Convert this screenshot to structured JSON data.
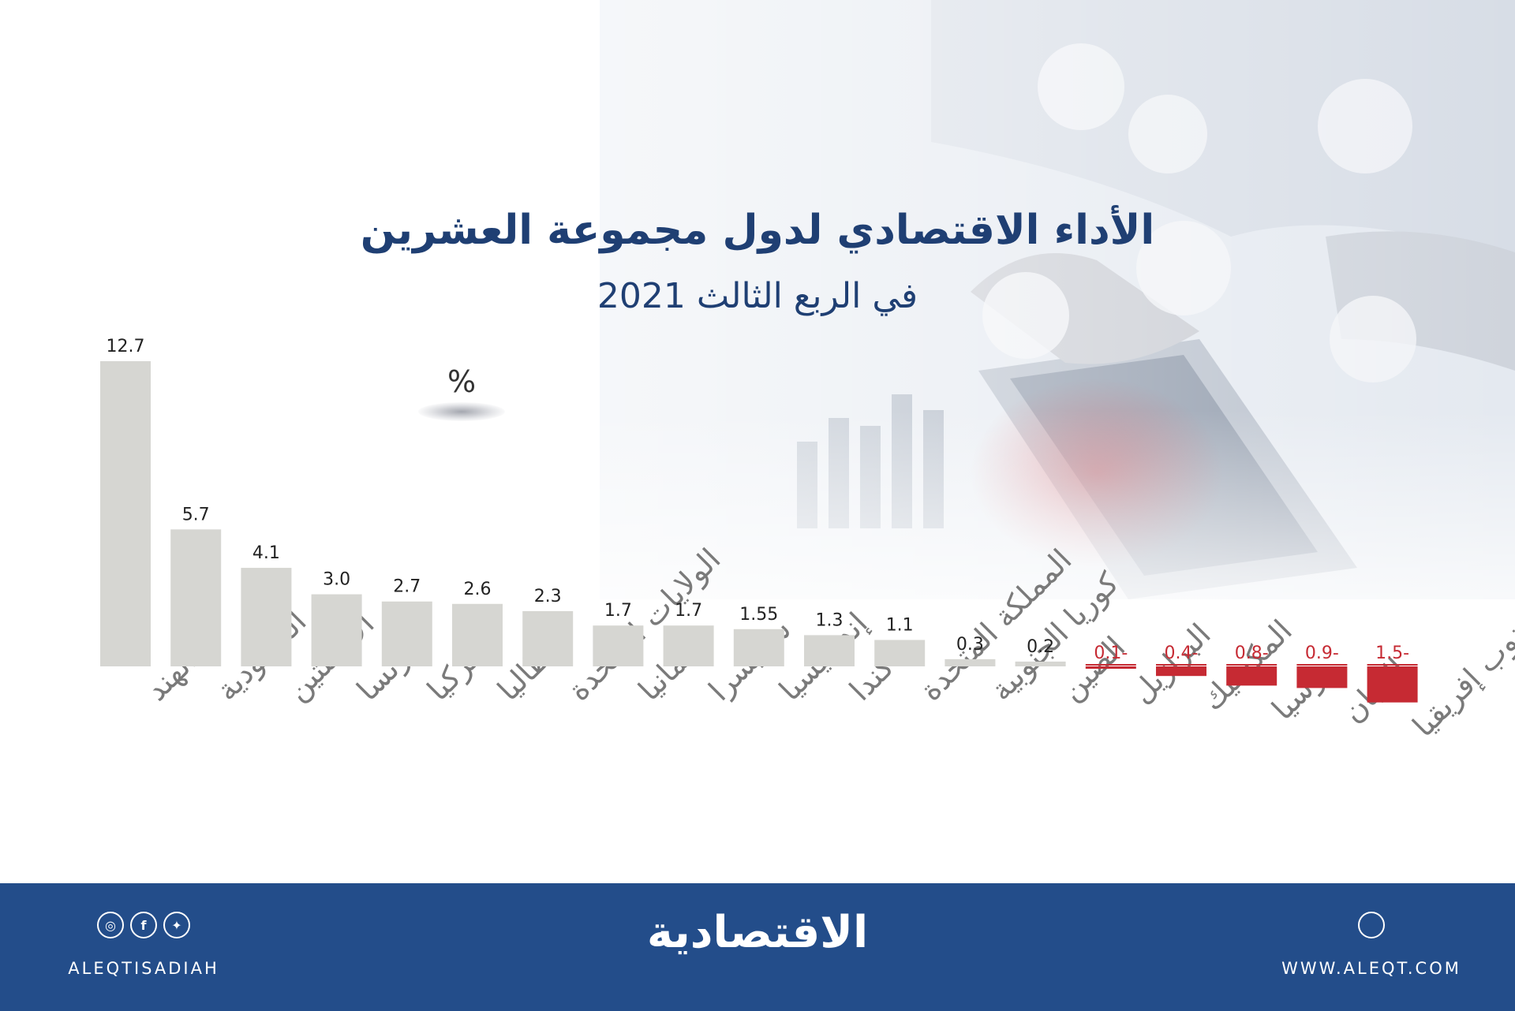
{
  "title": "الأداء الاقتصادي لدول مجموعة العشرين",
  "subtitle": "في الربع الثالث 2021",
  "unit": "%",
  "chart_data": {
    "type": "bar",
    "title": "الأداء الاقتصادي لدول مجموعة العشرين",
    "subtitle": "في الربع الثالث 2021",
    "ylabel": "%",
    "categories": [
      "الهند",
      "السعودية",
      "الأرجنتين",
      "فرنسا",
      "تركيا",
      "إيطاليا",
      "الولايات المتحدة",
      "ألمانيا",
      "سويسرا",
      "إندونيسيا",
      "كندا",
      "المملكة المتحدة",
      "كوريا الجنوبية",
      "الصين",
      "البرازيل",
      "المكسيك",
      "روسيا",
      "اليابان",
      "جنوب إفريقيا"
    ],
    "values": [
      12.7,
      5.7,
      4.1,
      3.0,
      2.7,
      2.6,
      2.3,
      1.7,
      1.7,
      1.55,
      1.3,
      1.1,
      0.3,
      0.2,
      -0.1,
      -0.4,
      -0.8,
      -0.9,
      -1.5
    ],
    "value_labels": [
      "12.7",
      "5.7",
      "4.1",
      "3.0",
      "2.7",
      "2.6",
      "2.3",
      "1.7",
      "1.7",
      "1.55",
      "1.3",
      "1.1",
      "0.3",
      "0.2",
      "0.1-",
      "0.4-",
      "0.8-",
      "0.9-",
      "1.5-"
    ],
    "ylim": [
      -1.5,
      12.7
    ],
    "grid": false,
    "colors": {
      "positive": "#d6d6d2",
      "negative": "#c62a33",
      "positive_label": "#222222",
      "negative_label": "#c62a33"
    }
  },
  "footer": {
    "brand": "الاقتصادية",
    "handle": "ALEQTISADIAH",
    "website": "WWW.ALEQT.COM",
    "social_icons": [
      "instagram-icon",
      "facebook-icon",
      "twitter-icon"
    ],
    "web_icon": "dribbble-icon",
    "color": "#234d8a"
  }
}
